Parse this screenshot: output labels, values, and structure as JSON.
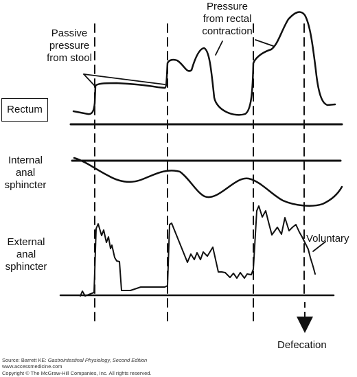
{
  "labels": {
    "passive_pressure": [
      "Passive",
      "pressure",
      "from stool"
    ],
    "rectal_contraction": [
      "Pressure",
      "from rectal",
      "contraction"
    ],
    "rectum": "Rectum",
    "internal_sphincter": [
      "Internal",
      "anal",
      "sphincter"
    ],
    "external_sphincter": [
      "External",
      "anal",
      "sphincter"
    ],
    "voluntary": "Voluntary",
    "defecation": "Defecation"
  },
  "source": {
    "prefix": "Source: Barrett KE: ",
    "title": "Gastrointestinal Physiology, Second Edition",
    "url": "www.accessmedicine.com",
    "copyright": "Copyright © The McGraw-Hill Companies, Inc. All rights reserved."
  },
  "colors": {
    "ink": "#111111",
    "background": "#ffffff"
  }
}
